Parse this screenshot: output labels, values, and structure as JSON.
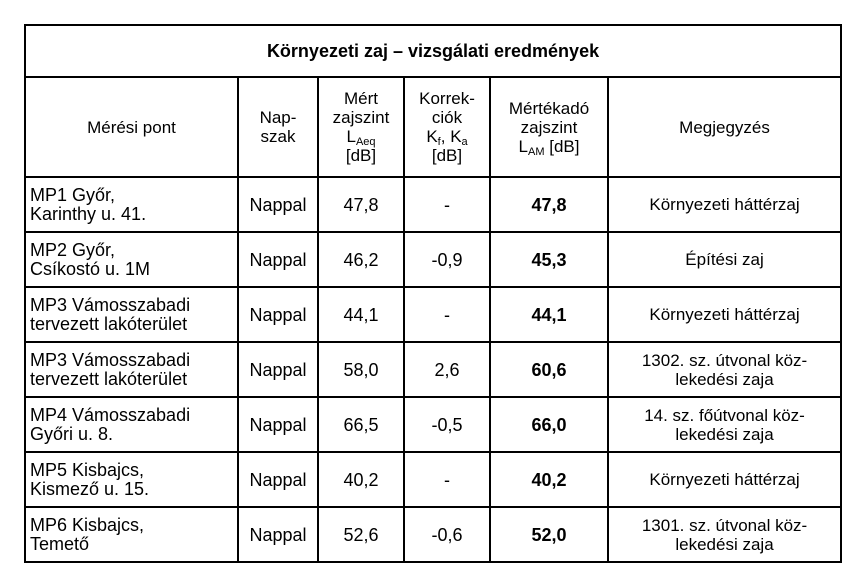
{
  "table": {
    "title": "Környezeti zaj – vizsgálati eredmények",
    "headers": {
      "point": "Mérési pont",
      "period": [
        "Nap-",
        "szak"
      ],
      "measured": {
        "l1": "Mért",
        "l2": "zajszint",
        "sym": "L",
        "sub": "Aeq",
        "unit": "[dB]"
      },
      "corrections": {
        "l1": "Korrek-",
        "l2": "ciók",
        "sym1": "K",
        "sub1": "f",
        "sep": ", ",
        "sym2": "K",
        "sub2": "a",
        "unit": "[dB]"
      },
      "rating": {
        "l1": "Mértékadó",
        "l2": "zajszint",
        "sym": "L",
        "sub": "AM",
        "unit": " [dB]"
      },
      "note": "Megjegyzés"
    },
    "rows": [
      {
        "point": [
          "MP1 Győr,",
          "Karinthy u. 41."
        ],
        "period": "Nappal",
        "measured": "47,8",
        "correction": "-",
        "rating": "47,8",
        "note": [
          "Környezeti háttérzaj"
        ]
      },
      {
        "point": [
          "MP2 Győr,",
          "Csíkostó u. 1M"
        ],
        "period": "Nappal",
        "measured": "46,2",
        "correction": "-0,9",
        "rating": "45,3",
        "note": [
          "Építési zaj"
        ]
      },
      {
        "point": [
          "MP3 Vámosszabadi",
          "tervezett lakóterület"
        ],
        "period": "Nappal",
        "measured": "44,1",
        "correction": "-",
        "rating": "44,1",
        "note": [
          "Környezeti háttérzaj"
        ]
      },
      {
        "point": [
          "MP3 Vámosszabadi",
          "tervezett lakóterület"
        ],
        "period": "Nappal",
        "measured": "58,0",
        "correction": "2,6",
        "rating": "60,6",
        "note": [
          "1302. sz. útvonal köz-",
          "lekedési zaja"
        ]
      },
      {
        "point": [
          "MP4 Vámosszabadi",
          "Győri u. 8."
        ],
        "period": "Nappal",
        "measured": "66,5",
        "correction": "-0,5",
        "rating": "66,0",
        "note": [
          "14. sz. főútvonal köz-",
          "lekedési zaja"
        ]
      },
      {
        "point": [
          "MP5 Kisbajcs,",
          "Kismező u. 15."
        ],
        "period": "Nappal",
        "measured": "40,2",
        "correction": "-",
        "rating": "40,2",
        "note": [
          "Környezeti háttérzaj"
        ]
      },
      {
        "point": [
          "MP6 Kisbajcs,",
          "Temető"
        ],
        "period": "Nappal",
        "measured": "52,6",
        "correction": "-0,6",
        "rating": "52,0",
        "note": [
          "1301. sz. útvonal köz-",
          "lekedési zaja"
        ]
      }
    ]
  }
}
